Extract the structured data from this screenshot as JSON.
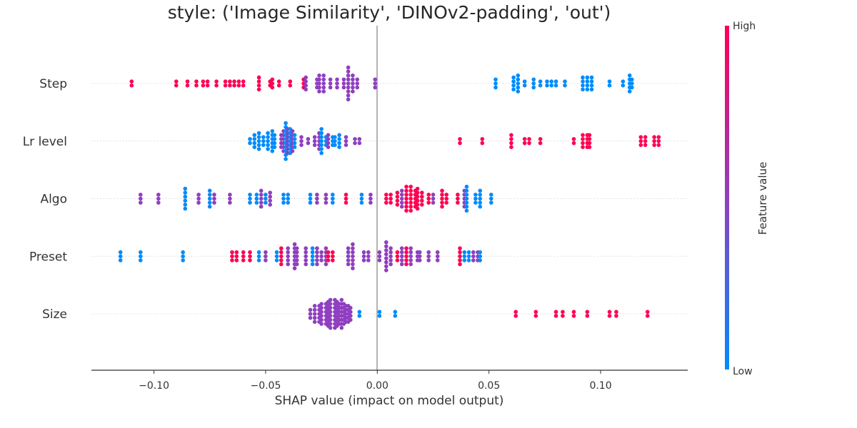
{
  "chart_data": {
    "type": "scatter",
    "subtype": "shap-beeswarm",
    "title": "style: ('Image Similarity', 'DINOv2-padding', 'out')",
    "xlabel": "SHAP value (impact on model output)",
    "xlim": [
      -0.128,
      0.139
    ],
    "xticks": [
      -0.1,
      -0.05,
      0.0,
      0.05,
      0.1
    ],
    "xtick_labels": [
      "−0.10",
      "−0.05",
      "0.00",
      "0.05",
      "0.10"
    ],
    "features": [
      "Step",
      "Lr level",
      "Algo",
      "Preset",
      "Size"
    ],
    "zero_line": true,
    "colorbar": {
      "title": "Feature value",
      "high_label": "High",
      "low_label": "Low",
      "low_color": "#008bfb",
      "mid_color": "#8f3fbf",
      "high_color": "#ff0052"
    },
    "series": [
      {
        "feature": "Step",
        "groups": [
          {
            "x": -0.11,
            "n": 2,
            "c": 1
          },
          {
            "x": -0.09,
            "n": 2,
            "c": 1
          },
          {
            "x": -0.085,
            "n": 2,
            "c": 1
          },
          {
            "x": -0.081,
            "n": 2,
            "c": 1
          },
          {
            "x": -0.078,
            "n": 2,
            "c": 1
          },
          {
            "x": -0.076,
            "n": 2,
            "c": 1
          },
          {
            "x": -0.072,
            "n": 2,
            "c": 1
          },
          {
            "x": -0.068,
            "n": 2,
            "c": 1
          },
          {
            "x": -0.066,
            "n": 2,
            "c": 1
          },
          {
            "x": -0.064,
            "n": 2,
            "c": 1
          },
          {
            "x": -0.062,
            "n": 2,
            "c": 1
          },
          {
            "x": -0.06,
            "n": 2,
            "c": 1
          },
          {
            "x": -0.053,
            "n": 4,
            "c": 1
          },
          {
            "x": -0.048,
            "n": 2,
            "c": 1
          },
          {
            "x": -0.047,
            "n": 3,
            "c": 1
          },
          {
            "x": -0.044,
            "n": 2,
            "c": 1
          },
          {
            "x": -0.039,
            "n": 2,
            "c": 1
          },
          {
            "x": -0.033,
            "n": 3,
            "c": 1
          },
          {
            "x": -0.032,
            "n": 4,
            "c": 0.5
          },
          {
            "x": -0.027,
            "n": 3,
            "c": 0.5
          },
          {
            "x": -0.026,
            "n": 5,
            "c": 0.5
          },
          {
            "x": -0.024,
            "n": 5,
            "c": 0.5
          },
          {
            "x": -0.021,
            "n": 3,
            "c": 0.5
          },
          {
            "x": -0.018,
            "n": 3,
            "c": 0.5
          },
          {
            "x": -0.015,
            "n": 3,
            "c": 0.5
          },
          {
            "x": -0.013,
            "n": 9,
            "c": 0.5
          },
          {
            "x": -0.011,
            "n": 5,
            "c": 0.5
          },
          {
            "x": -0.009,
            "n": 3,
            "c": 0.5
          },
          {
            "x": -0.001,
            "n": 3,
            "c": 0.5
          },
          {
            "x": 0.053,
            "n": 3,
            "c": 0
          },
          {
            "x": 0.061,
            "n": 4,
            "c": 0
          },
          {
            "x": 0.063,
            "n": 5,
            "c": 0
          },
          {
            "x": 0.066,
            "n": 2,
            "c": 0
          },
          {
            "x": 0.07,
            "n": 3,
            "c": 0
          },
          {
            "x": 0.073,
            "n": 2,
            "c": 0
          },
          {
            "x": 0.076,
            "n": 2,
            "c": 0
          },
          {
            "x": 0.078,
            "n": 2,
            "c": 0
          },
          {
            "x": 0.08,
            "n": 2,
            "c": 0
          },
          {
            "x": 0.084,
            "n": 2,
            "c": 0
          },
          {
            "x": 0.092,
            "n": 4,
            "c": 0
          },
          {
            "x": 0.094,
            "n": 4,
            "c": 0
          },
          {
            "x": 0.096,
            "n": 4,
            "c": 0
          },
          {
            "x": 0.104,
            "n": 2,
            "c": 0
          },
          {
            "x": 0.11,
            "n": 2,
            "c": 0
          },
          {
            "x": 0.113,
            "n": 5,
            "c": 0
          },
          {
            "x": 0.114,
            "n": 3,
            "c": 0
          }
        ]
      },
      {
        "feature": "Lr level",
        "groups": [
          {
            "x": -0.057,
            "n": 2,
            "c": 0
          },
          {
            "x": -0.055,
            "n": 4,
            "c": 0
          },
          {
            "x": -0.053,
            "n": 5,
            "c": 0
          },
          {
            "x": -0.051,
            "n": 3,
            "c": 0
          },
          {
            "x": -0.049,
            "n": 5,
            "c": 0
          },
          {
            "x": -0.047,
            "n": 6,
            "c": 0
          },
          {
            "x": -0.046,
            "n": 4,
            "c": 0
          },
          {
            "x": -0.043,
            "n": 4,
            "c": 0.5
          },
          {
            "x": -0.042,
            "n": 6,
            "c": 0.5
          },
          {
            "x": -0.041,
            "n": 10,
            "c": 0
          },
          {
            "x": -0.04,
            "n": 7,
            "c": 0.5
          },
          {
            "x": -0.039,
            "n": 7,
            "c": 0
          },
          {
            "x": -0.038,
            "n": 6,
            "c": 0.5
          },
          {
            "x": -0.037,
            "n": 4,
            "c": 0
          },
          {
            "x": -0.034,
            "n": 3,
            "c": 0.5
          },
          {
            "x": -0.031,
            "n": 2,
            "c": 0.5
          },
          {
            "x": -0.028,
            "n": 3,
            "c": 0.5
          },
          {
            "x": -0.026,
            "n": 5,
            "c": 0.5
          },
          {
            "x": -0.025,
            "n": 7,
            "c": 0
          },
          {
            "x": -0.023,
            "n": 3,
            "c": 0
          },
          {
            "x": -0.022,
            "n": 4,
            "c": 0.5
          },
          {
            "x": -0.02,
            "n": 3,
            "c": 0
          },
          {
            "x": -0.019,
            "n": 3,
            "c": 0
          },
          {
            "x": -0.017,
            "n": 4,
            "c": 0
          },
          {
            "x": -0.014,
            "n": 3,
            "c": 0.5
          },
          {
            "x": -0.01,
            "n": 2,
            "c": 0.5
          },
          {
            "x": -0.008,
            "n": 2,
            "c": 0.5
          },
          {
            "x": 0.037,
            "n": 2,
            "c": 1
          },
          {
            "x": 0.047,
            "n": 2,
            "c": 1
          },
          {
            "x": 0.06,
            "n": 4,
            "c": 1
          },
          {
            "x": 0.066,
            "n": 2,
            "c": 1
          },
          {
            "x": 0.068,
            "n": 2,
            "c": 1
          },
          {
            "x": 0.073,
            "n": 2,
            "c": 1
          },
          {
            "x": 0.088,
            "n": 2,
            "c": 1
          },
          {
            "x": 0.092,
            "n": 4,
            "c": 1
          },
          {
            "x": 0.094,
            "n": 4,
            "c": 1
          },
          {
            "x": 0.095,
            "n": 4,
            "c": 1
          },
          {
            "x": 0.118,
            "n": 3,
            "c": 1
          },
          {
            "x": 0.12,
            "n": 3,
            "c": 1
          },
          {
            "x": 0.124,
            "n": 3,
            "c": 1
          },
          {
            "x": 0.126,
            "n": 3,
            "c": 1
          }
        ]
      },
      {
        "feature": "Algo",
        "groups": [
          {
            "x": -0.106,
            "n": 3,
            "c": 0.5
          },
          {
            "x": -0.098,
            "n": 3,
            "c": 0.5
          },
          {
            "x": -0.086,
            "n": 6,
            "c": 0
          },
          {
            "x": -0.08,
            "n": 3,
            "c": 0.5
          },
          {
            "x": -0.075,
            "n": 5,
            "c": 0
          },
          {
            "x": -0.073,
            "n": 3,
            "c": 0.5
          },
          {
            "x": -0.066,
            "n": 3,
            "c": 0.5
          },
          {
            "x": -0.057,
            "n": 3,
            "c": 0
          },
          {
            "x": -0.054,
            "n": 3,
            "c": 0
          },
          {
            "x": -0.052,
            "n": 5,
            "c": 0.5
          },
          {
            "x": -0.05,
            "n": 3,
            "c": 0
          },
          {
            "x": -0.048,
            "n": 4,
            "c": 0.5
          },
          {
            "x": -0.042,
            "n": 3,
            "c": 0
          },
          {
            "x": -0.04,
            "n": 3,
            "c": 0
          },
          {
            "x": -0.03,
            "n": 3,
            "c": 0
          },
          {
            "x": -0.027,
            "n": 3,
            "c": 0.5
          },
          {
            "x": -0.023,
            "n": 3,
            "c": 0.5
          },
          {
            "x": -0.02,
            "n": 3,
            "c": 0
          },
          {
            "x": -0.014,
            "n": 3,
            "c": 1
          },
          {
            "x": -0.007,
            "n": 3,
            "c": 0
          },
          {
            "x": -0.003,
            "n": 3,
            "c": 0.5
          },
          {
            "x": 0.004,
            "n": 3,
            "c": 1
          },
          {
            "x": 0.006,
            "n": 3,
            "c": 1
          },
          {
            "x": 0.009,
            "n": 4,
            "c": 1
          },
          {
            "x": 0.011,
            "n": 5,
            "c": 0.5
          },
          {
            "x": 0.013,
            "n": 7,
            "c": 1
          },
          {
            "x": 0.015,
            "n": 7,
            "c": 1
          },
          {
            "x": 0.017,
            "n": 5,
            "c": 1
          },
          {
            "x": 0.018,
            "n": 6,
            "c": 1
          },
          {
            "x": 0.02,
            "n": 4,
            "c": 1
          },
          {
            "x": 0.023,
            "n": 3,
            "c": 1
          },
          {
            "x": 0.025,
            "n": 3,
            "c": 0.5
          },
          {
            "x": 0.029,
            "n": 5,
            "c": 1
          },
          {
            "x": 0.031,
            "n": 3,
            "c": 1
          },
          {
            "x": 0.036,
            "n": 3,
            "c": 1
          },
          {
            "x": 0.039,
            "n": 5,
            "c": 0.5
          },
          {
            "x": 0.04,
            "n": 7,
            "c": 0
          },
          {
            "x": 0.044,
            "n": 3,
            "c": 0
          },
          {
            "x": 0.046,
            "n": 5,
            "c": 0
          },
          {
            "x": 0.051,
            "n": 3,
            "c": 0
          }
        ]
      },
      {
        "feature": "Preset",
        "groups": [
          {
            "x": -0.115,
            "n": 3,
            "c": 0
          },
          {
            "x": -0.106,
            "n": 3,
            "c": 0
          },
          {
            "x": -0.087,
            "n": 3,
            "c": 0
          },
          {
            "x": -0.065,
            "n": 3,
            "c": 1
          },
          {
            "x": -0.063,
            "n": 3,
            "c": 1
          },
          {
            "x": -0.06,
            "n": 3,
            "c": 1
          },
          {
            "x": -0.057,
            "n": 3,
            "c": 1
          },
          {
            "x": -0.053,
            "n": 3,
            "c": 0
          },
          {
            "x": -0.05,
            "n": 3,
            "c": 0.5
          },
          {
            "x": -0.045,
            "n": 3,
            "c": 0
          },
          {
            "x": -0.043,
            "n": 5,
            "c": 1
          },
          {
            "x": -0.04,
            "n": 5,
            "c": 0.5
          },
          {
            "x": -0.037,
            "n": 7,
            "c": 0.5
          },
          {
            "x": -0.036,
            "n": 5,
            "c": 0.5
          },
          {
            "x": -0.032,
            "n": 5,
            "c": 0.5
          },
          {
            "x": -0.029,
            "n": 5,
            "c": 0
          },
          {
            "x": -0.027,
            "n": 5,
            "c": 0.5
          },
          {
            "x": -0.025,
            "n": 3,
            "c": 0.5
          },
          {
            "x": -0.023,
            "n": 5,
            "c": 0.5
          },
          {
            "x": -0.022,
            "n": 3,
            "c": 1
          },
          {
            "x": -0.02,
            "n": 3,
            "c": 1
          },
          {
            "x": -0.013,
            "n": 5,
            "c": 0.5
          },
          {
            "x": -0.011,
            "n": 7,
            "c": 0.5
          },
          {
            "x": -0.006,
            "n": 3,
            "c": 0.5
          },
          {
            "x": -0.004,
            "n": 3,
            "c": 0.5
          },
          {
            "x": 0.001,
            "n": 3,
            "c": 0.5
          },
          {
            "x": 0.004,
            "n": 8,
            "c": 0.5
          },
          {
            "x": 0.006,
            "n": 5,
            "c": 0.5
          },
          {
            "x": 0.009,
            "n": 3,
            "c": 1
          },
          {
            "x": 0.011,
            "n": 5,
            "c": 0.5
          },
          {
            "x": 0.013,
            "n": 5,
            "c": 1
          },
          {
            "x": 0.015,
            "n": 5,
            "c": 0.5
          },
          {
            "x": 0.018,
            "n": 3,
            "c": 0.5
          },
          {
            "x": 0.019,
            "n": 3,
            "c": 0.5
          },
          {
            "x": 0.023,
            "n": 3,
            "c": 0.5
          },
          {
            "x": 0.027,
            "n": 3,
            "c": 0.5
          },
          {
            "x": 0.037,
            "n": 5,
            "c": 1
          },
          {
            "x": 0.039,
            "n": 3,
            "c": 0
          },
          {
            "x": 0.041,
            "n": 3,
            "c": 0
          },
          {
            "x": 0.043,
            "n": 3,
            "c": 0.5
          },
          {
            "x": 0.045,
            "n": 3,
            "c": 0.5
          },
          {
            "x": 0.046,
            "n": 3,
            "c": 0
          }
        ]
      },
      {
        "feature": "Size",
        "groups": [
          {
            "x": -0.03,
            "n": 3,
            "c": 0.5
          },
          {
            "x": -0.028,
            "n": 5,
            "c": 0.5
          },
          {
            "x": -0.026,
            "n": 5,
            "c": 0.5
          },
          {
            "x": -0.025,
            "n": 6,
            "c": 0.5
          },
          {
            "x": -0.023,
            "n": 6,
            "c": 0.5
          },
          {
            "x": -0.022,
            "n": 7,
            "c": 0.5
          },
          {
            "x": -0.021,
            "n": 8,
            "c": 0.5
          },
          {
            "x": -0.019,
            "n": 8,
            "c": 0.5
          },
          {
            "x": -0.018,
            "n": 7,
            "c": 0.5
          },
          {
            "x": -0.017,
            "n": 6,
            "c": 0.5
          },
          {
            "x": -0.016,
            "n": 8,
            "c": 0.5
          },
          {
            "x": -0.015,
            "n": 6,
            "c": 0.5
          },
          {
            "x": -0.014,
            "n": 5,
            "c": 0.5
          },
          {
            "x": -0.013,
            "n": 5,
            "c": 0.5
          },
          {
            "x": -0.012,
            "n": 4,
            "c": 0.5
          },
          {
            "x": -0.008,
            "n": 2,
            "c": 0
          },
          {
            "x": 0.001,
            "n": 2,
            "c": 0
          },
          {
            "x": 0.008,
            "n": 2,
            "c": 0
          },
          {
            "x": 0.062,
            "n": 2,
            "c": 1
          },
          {
            "x": 0.071,
            "n": 2,
            "c": 1
          },
          {
            "x": 0.08,
            "n": 2,
            "c": 1
          },
          {
            "x": 0.083,
            "n": 2,
            "c": 1
          },
          {
            "x": 0.088,
            "n": 2,
            "c": 1
          },
          {
            "x": 0.094,
            "n": 2,
            "c": 1
          },
          {
            "x": 0.104,
            "n": 2,
            "c": 1
          },
          {
            "x": 0.107,
            "n": 2,
            "c": 1
          },
          {
            "x": 0.121,
            "n": 2,
            "c": 1
          }
        ]
      }
    ]
  }
}
